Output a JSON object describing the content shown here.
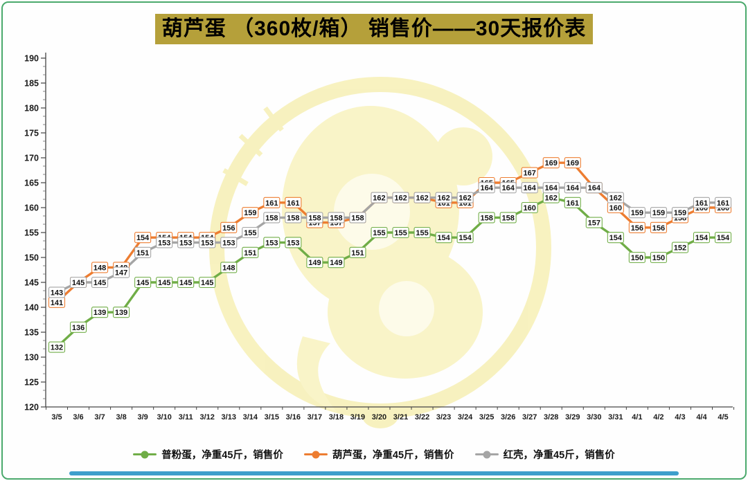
{
  "title": "葫芦蛋 （360枚/箱） 销售价——30天报价表",
  "colors": {
    "title_bg": "#b5a03a",
    "frame_border": "#4aa96c",
    "bottom_bar": "#3e9fcc",
    "watermark": "#f2e88d",
    "series_green": "#70ad47",
    "series_orange": "#ed7d31",
    "series_gray": "#a5a5a5"
  },
  "icons": {
    "watermark": "brand-emblem-watermark"
  },
  "chart_data": {
    "type": "line",
    "title": "葫芦蛋 （360枚/箱） 销售价——30天报价表",
    "xlabel": "",
    "ylabel": "",
    "ylim": [
      120,
      190
    ],
    "ytick_step": 5,
    "grid": false,
    "legend_position": "bottom",
    "data_labels": true,
    "x": [
      "3/5",
      "3/6",
      "3/7",
      "3/8",
      "3/9",
      "3/10",
      "3/11",
      "3/12",
      "3/13",
      "3/14",
      "3/15",
      "3/16",
      "3/17",
      "3/18",
      "3/19",
      "3/20",
      "3/21",
      "3/22",
      "3/23",
      "3/24",
      "3/25",
      "3/26",
      "3/27",
      "3/28",
      "3/29",
      "3/30",
      "3/31",
      "4/1",
      "4/2",
      "4/3",
      "4/4",
      "4/5"
    ],
    "series": [
      {
        "name": "普粉蛋，净重45斤，销售价",
        "color": "#70ad47",
        "values": [
          132,
          136,
          139,
          139,
          145,
          145,
          145,
          145,
          148,
          151,
          153,
          153,
          149,
          149,
          151,
          155,
          155,
          155,
          154,
          154,
          158,
          158,
          160,
          162,
          161,
          157,
          154,
          150,
          150,
          152,
          154,
          154
        ]
      },
      {
        "name": "葫芦蛋，净重45斤，销售价",
        "color": "#ed7d31",
        "values": [
          141,
          145,
          148,
          148,
          154,
          154,
          154,
          154,
          156,
          159,
          161,
          161,
          157,
          157,
          158,
          162,
          162,
          162,
          161,
          161,
          165,
          165,
          167,
          169,
          169,
          164,
          160,
          156,
          156,
          158,
          160,
          160
        ]
      },
      {
        "name": "红壳，净重45斤，销售价",
        "color": "#a5a5a5",
        "values": [
          143,
          145,
          145,
          147,
          151,
          153,
          153,
          153,
          153,
          155,
          158,
          158,
          158,
          158,
          158,
          162,
          162,
          162,
          162,
          162,
          164,
          164,
          164,
          164,
          164,
          164,
          162,
          159,
          159,
          159,
          161,
          161
        ]
      }
    ]
  }
}
